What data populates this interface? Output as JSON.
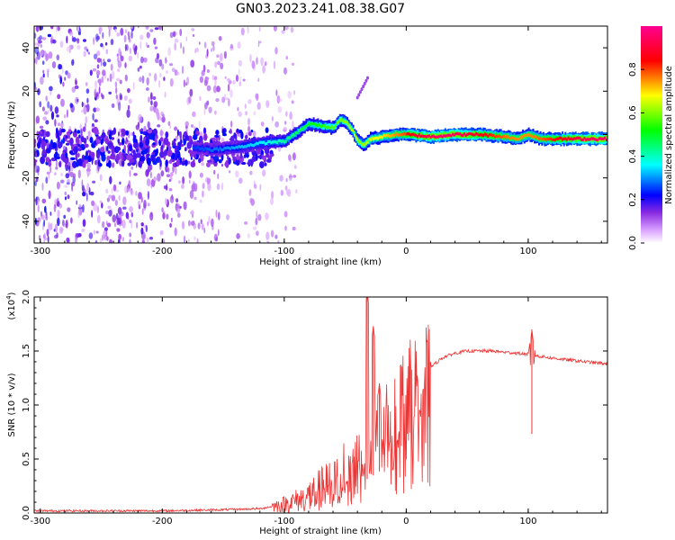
{
  "figure": {
    "title": "GN03.2023.241.08.38.G07"
  },
  "chart_data": [
    {
      "type": "heatmap",
      "xlabel": "Height of straight line (km)",
      "ylabel": "Frequency (Hz)",
      "xlim": [
        -305,
        165
      ],
      "ylim": [
        -50,
        50
      ],
      "x_ticks": [
        -300,
        -200,
        -100,
        0,
        100
      ],
      "y_ticks": [
        -40,
        -20,
        0,
        20,
        40
      ],
      "colorbar": {
        "label": "Normalized spectral amplitude",
        "range": [
          0,
          1
        ],
        "ticks": [
          "0.0",
          "0.2",
          "0.4",
          "0.6",
          "0.8"
        ],
        "tick_values": [
          0.0,
          0.2,
          0.4,
          0.6,
          0.8
        ],
        "colormap": [
          "#ffffff",
          "#d9a0ff",
          "#8a2be2",
          "#0000ff",
          "#00ffff",
          "#00ff00",
          "#ffff00",
          "#ff0000",
          "#ff0090"
        ]
      },
      "ridge": {
        "x": [
          -175,
          -160,
          -140,
          -120,
          -100,
          -90,
          -80,
          -70,
          -60,
          -55,
          -50,
          -45,
          -40,
          -35,
          -30,
          -20,
          -10,
          0,
          20,
          40,
          60,
          80,
          90,
          100,
          110,
          130,
          165
        ],
        "y": [
          -6,
          -7,
          -6,
          -4,
          -3,
          1,
          5,
          4,
          3,
          7,
          6,
          2,
          -3,
          -5,
          -2,
          -1,
          0,
          0,
          -1,
          0,
          0,
          -1,
          -2,
          0,
          -2,
          -2,
          -2
        ]
      },
      "noise_region": {
        "x_start": -305,
        "x_end": -110
      }
    },
    {
      "type": "line",
      "xlabel": "Height of straight line (km)",
      "ylabel": "SNR (10 * v/v)",
      "y_scale_label": "(x10",
      "y_scale_exponent": "4",
      "xlim": [
        -305,
        165
      ],
      "ylim": [
        0,
        2.0
      ],
      "x_ticks": [
        -300,
        -200,
        -100,
        0,
        100
      ],
      "y_ticks": [
        0.0,
        0.5,
        1.0,
        1.5,
        2.0
      ],
      "y_tick_labels": [
        "0.0",
        "0.5",
        "1.0",
        "1.5",
        "2.0"
      ],
      "color": "#ee3333",
      "series": [
        {
          "x": [
            -305,
            -250,
            -200,
            -150,
            -120,
            -100,
            -80,
            -60,
            -50,
            -40,
            -30,
            -20,
            -10,
            0,
            10,
            20,
            30,
            40,
            50,
            60,
            70,
            80,
            90,
            100,
            110,
            130,
            165
          ],
          "y": [
            0.02,
            0.02,
            0.02,
            0.03,
            0.04,
            0.08,
            0.15,
            0.28,
            0.4,
            0.55,
            0.65,
            0.8,
            0.95,
            1.1,
            1.22,
            1.35,
            1.44,
            1.48,
            1.5,
            1.5,
            1.5,
            1.49,
            1.48,
            1.47,
            1.45,
            1.42,
            1.38
          ]
        }
      ],
      "spikes": [
        {
          "x": -32,
          "y": 2.05
        },
        {
          "x": -27,
          "y": 1.73
        },
        {
          "x": -22,
          "y": 1.2
        },
        {
          "x": 103,
          "y": 1.7
        }
      ]
    }
  ]
}
